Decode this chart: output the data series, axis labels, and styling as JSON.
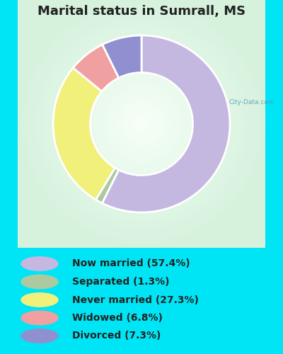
{
  "title": "Marital status in Sumrall, MS",
  "slices": [
    57.4,
    1.3,
    27.3,
    6.8,
    7.3
  ],
  "labels": [
    "Now married (57.4%)",
    "Separated (1.3%)",
    "Never married (27.3%)",
    "Widowed (6.8%)",
    "Divorced (7.3%)"
  ],
  "colors": [
    "#c5b8e0",
    "#adc9a0",
    "#f0f07a",
    "#f0a0a0",
    "#9090d0"
  ],
  "bg_cyan": "#00e5f5",
  "title_color": "#222222",
  "title_fontsize": 13,
  "legend_fontsize": 10
}
